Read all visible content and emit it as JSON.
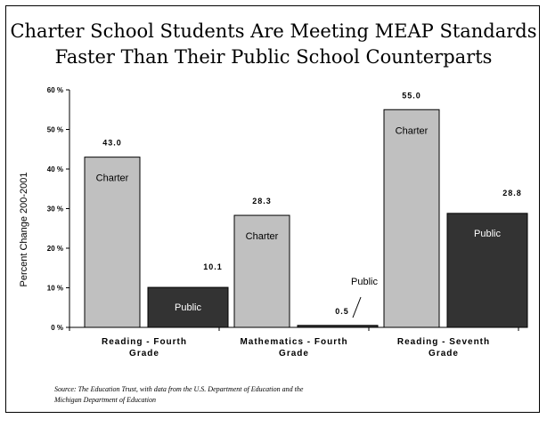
{
  "chart_data": {
    "type": "bar",
    "title": [
      "Charter School Students Are Meeting MEAP Standards",
      "Faster Than Their Public School Counterparts"
    ],
    "ylabel": "Percent Change 200-2001",
    "ylim": [
      0,
      60
    ],
    "yticks": [
      "0 %",
      "10 %",
      "20 %",
      "30 %",
      "40 %",
      "50 %",
      "60 %"
    ],
    "categories": [
      [
        "Reading - Fourth",
        "Grade"
      ],
      [
        "Mathematics - Fourth",
        "Grade"
      ],
      [
        "Reading - Seventh",
        "Grade"
      ]
    ],
    "series": [
      {
        "name": "Charter",
        "values": [
          43.0,
          28.3,
          55.0
        ],
        "value_labels": [
          "43.0",
          "28.3",
          "55.0"
        ],
        "color": "#c0c0c0"
      },
      {
        "name": "Public",
        "values": [
          10.1,
          0.5,
          28.8
        ],
        "value_labels": [
          "10.1",
          "0.5",
          "28.8"
        ],
        "color": "#333333"
      }
    ],
    "source": [
      "Source: The Education Trust, with data from the U.S. Department of Education and the",
      "Michigan Department of Education"
    ]
  },
  "colors": {
    "charter": "#c0c0c0",
    "public": "#333333",
    "axis": "#000000"
  }
}
